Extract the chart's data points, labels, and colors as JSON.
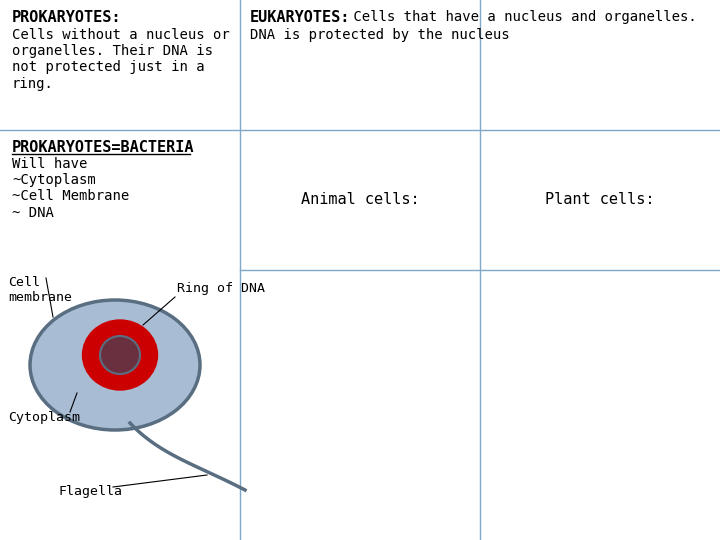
{
  "bg_color": "#ffffff",
  "grid_color": "#7fa8c8",
  "prokaryotes_title": "PROKARYOTES:",
  "prokaryotes_body": "Cells without a nucleus or\norganelles. Their DNA is\nnot protected just in a\nring.",
  "eukaryotes_title": "EUKARYOTES:",
  "eukaryotes_body_line1": " Cells that have a nucleus and organelles.",
  "eukaryotes_body_line2": "DNA is protected by the nucleus",
  "animal_cells": "Animal cells:",
  "plant_cells": "Plant cells:",
  "bacteria_title": "PROKARYOTES=BACTERIA",
  "bacteria_body": "Will have\n~Cytoplasm\n~Cell Membrane\n~ DNA",
  "cell_color": "#a8bcd4",
  "cell_edge_color": "#5a6e82",
  "dna_outer_color": "#cc0000",
  "dna_inner_color": "#6b3040",
  "label_cell_membrane": "Cell\nmembrane",
  "label_ring_dna": "Ring of DNA",
  "label_cytoplasm": "Cytoplasm",
  "label_flagella": "Flagella",
  "c1": 240,
  "c2": 480,
  "c3": 720,
  "row_div": 410,
  "row_sub": 270
}
